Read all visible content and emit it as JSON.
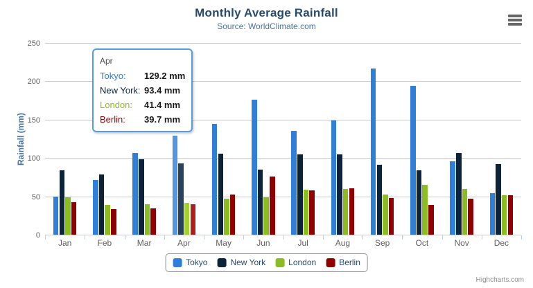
{
  "title": "Monthly Average Rainfall",
  "subtitle": "Source: WorldClimate.com",
  "credits": "Highcharts.com",
  "export_menu": {
    "icon": "hamburger-icon"
  },
  "colors": {
    "title_text": "#274b6d",
    "subtitle_text": "#4d759e",
    "axis_label_text": "#606060",
    "y_axis_title_text": "#4572a7",
    "axis_line": "#c0d0e0",
    "gridline": "#c8c8c8",
    "legend_border": "#909090",
    "legend_text": "#274b6d",
    "credits_text": "#909090",
    "tooltip_border": "#569ae2",
    "background": "#ffffff"
  },
  "tooltip": {
    "header": "Apr",
    "border_color": "#569ae2",
    "rows": [
      {
        "name": "Tokyo:",
        "value": "129.2 mm",
        "color": "#2f7ed8"
      },
      {
        "name": "New York:",
        "value": "93.4 mm",
        "color": "#0d233a"
      },
      {
        "name": "London:",
        "value": "41.4 mm",
        "color": "#8bbc21"
      },
      {
        "name": "Berlin:",
        "value": "39.7 mm",
        "color": "#910000"
      }
    ]
  },
  "chart_data": {
    "type": "bar",
    "title": "Monthly Average Rainfall",
    "subtitle": "Source: WorldClimate.com",
    "categories": [
      "Jan",
      "Feb",
      "Mar",
      "Apr",
      "May",
      "Jun",
      "Jul",
      "Aug",
      "Sep",
      "Oct",
      "Nov",
      "Dec"
    ],
    "series": [
      {
        "name": "Tokyo",
        "color": "#2f7ed8",
        "hover_color": "#5295e2",
        "values": [
          49.9,
          71.5,
          106.4,
          129.2,
          144.0,
          176.0,
          135.6,
          148.5,
          216.4,
          194.1,
          95.6,
          54.4
        ]
      },
      {
        "name": "New York",
        "color": "#0d233a",
        "hover_color": "#2a425c",
        "values": [
          83.6,
          78.8,
          98.5,
          93.4,
          106.0,
          84.5,
          105.0,
          104.3,
          91.2,
          83.5,
          106.6,
          92.3
        ]
      },
      {
        "name": "London",
        "color": "#8bbc21",
        "hover_color": "#a3d22e",
        "values": [
          48.9,
          38.8,
          39.3,
          41.4,
          47.0,
          48.3,
          59.0,
          59.6,
          52.4,
          65.2,
          59.3,
          51.2
        ]
      },
      {
        "name": "Berlin",
        "color": "#910000",
        "hover_color": "#ad1e1e",
        "values": [
          42.4,
          33.2,
          34.5,
          39.7,
          52.6,
          75.5,
          57.4,
          60.4,
          47.6,
          39.1,
          46.8,
          51.1
        ]
      }
    ],
    "xlabel": "",
    "ylabel": "Rainfall (mm)",
    "ylim": [
      0,
      250
    ],
    "y_ticks": [
      0,
      50,
      100,
      150,
      200,
      250
    ],
    "grid": true,
    "legend_position": "bottom",
    "hovered_category": "Apr",
    "value_suffix": " mm"
  }
}
